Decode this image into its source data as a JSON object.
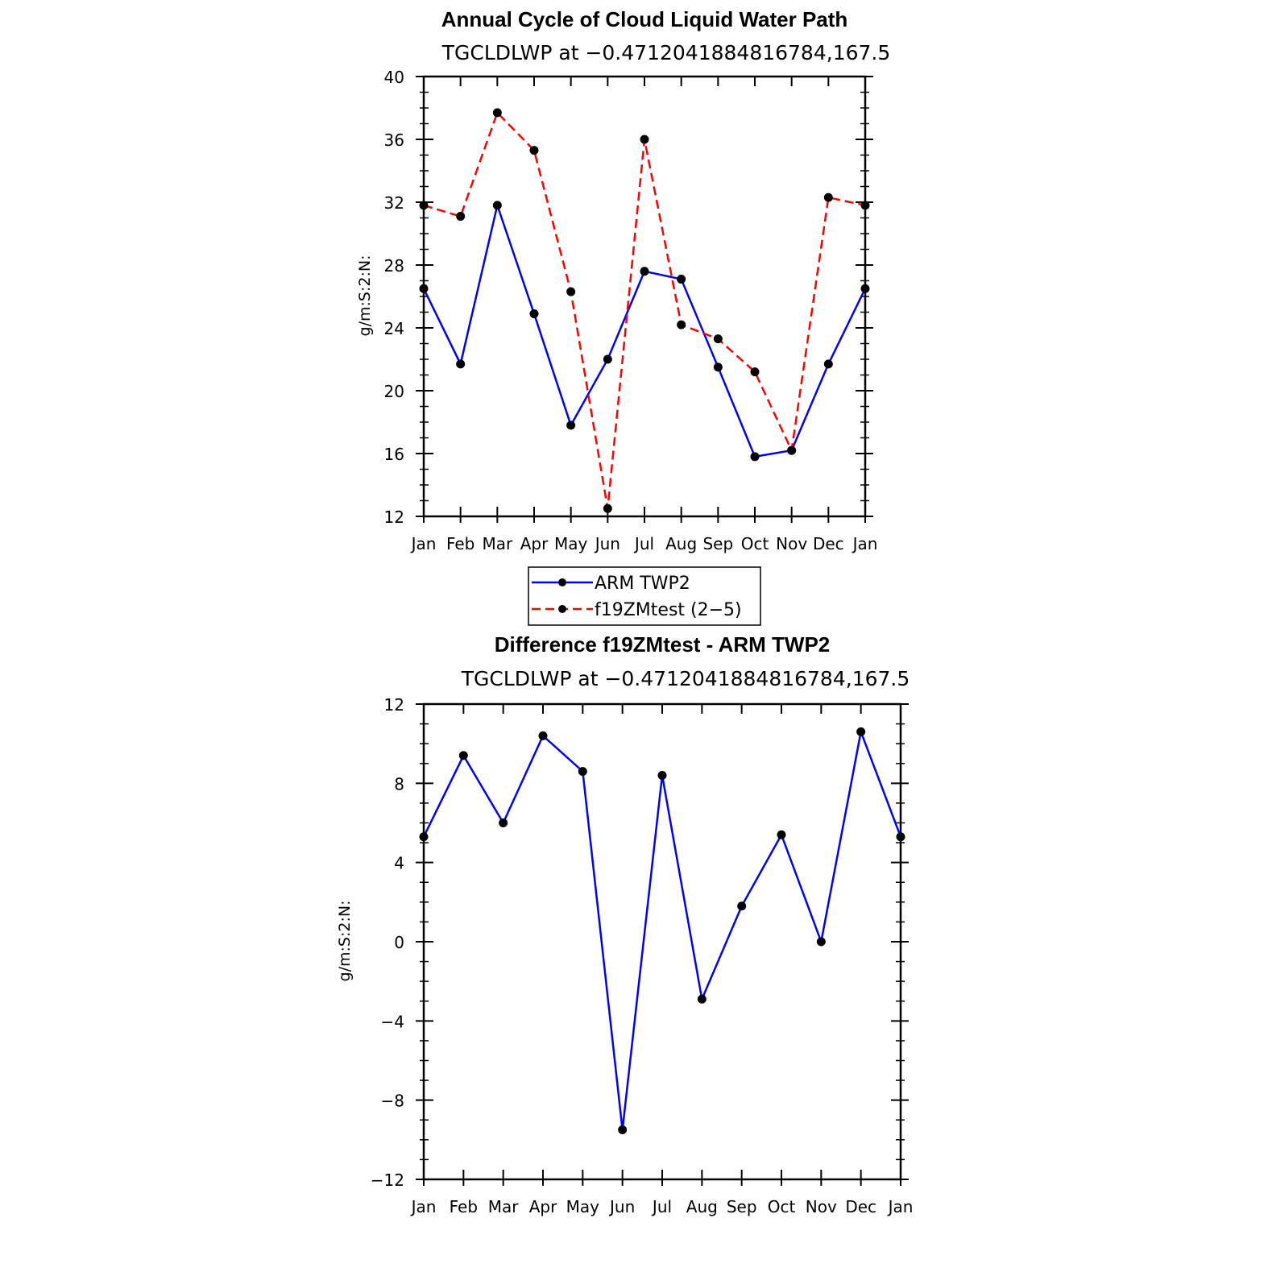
{
  "chart_data": [
    {
      "type": "line",
      "title": "Annual Cycle of Cloud Liquid Water Path",
      "subtitle": "TGCLDLWP at −0.4712041884816784,167.5",
      "xlabel": "",
      "ylabel": "g/m:S:2:N:",
      "categories": [
        "Jan",
        "Feb",
        "Mar",
        "Apr",
        "May",
        "Jun",
        "Jul",
        "Aug",
        "Sep",
        "Oct",
        "Nov",
        "Dec",
        "Jan"
      ],
      "ylim": [
        12,
        40
      ],
      "yticks": [
        "12",
        "16",
        "20",
        "24",
        "28",
        "32",
        "36",
        "40"
      ],
      "legend_position": "bottom-center",
      "series": [
        {
          "name": "ARM TWP2",
          "color": "#0000ff",
          "style": "solid",
          "values": [
            26.5,
            21.7,
            31.8,
            24.9,
            17.8,
            22.0,
            27.6,
            27.1,
            21.5,
            15.8,
            16.2,
            21.7,
            26.5
          ]
        },
        {
          "name": "f19ZMtest (2−5)",
          "color": "#ff0000",
          "style": "dashed",
          "values": [
            31.8,
            31.1,
            37.7,
            35.3,
            26.3,
            12.5,
            36.0,
            24.2,
            23.3,
            21.2,
            16.2,
            32.3,
            31.8
          ]
        }
      ]
    },
    {
      "type": "line",
      "title": "Difference f19ZMtest - ARM TWP2",
      "subtitle": "TGCLDLWP at −0.4712041884816784,167.5",
      "xlabel": "",
      "ylabel": "g/m:S:2:N:",
      "categories": [
        "Jan",
        "Feb",
        "Mar",
        "Apr",
        "May",
        "Jun",
        "Jul",
        "Aug",
        "Sep",
        "Oct",
        "Nov",
        "Dec",
        "Jan"
      ],
      "ylim": [
        -12,
        12
      ],
      "yticks": [
        "−12",
        "−8",
        "−4",
        "0",
        "4",
        "8",
        "12"
      ],
      "series": [
        {
          "color": "#0000ff",
          "style": "solid",
          "values": [
            5.3,
            9.4,
            6.0,
            10.4,
            8.6,
            -9.5,
            8.4,
            -2.9,
            1.8,
            5.4,
            0.0,
            10.6,
            5.3
          ]
        }
      ]
    }
  ]
}
